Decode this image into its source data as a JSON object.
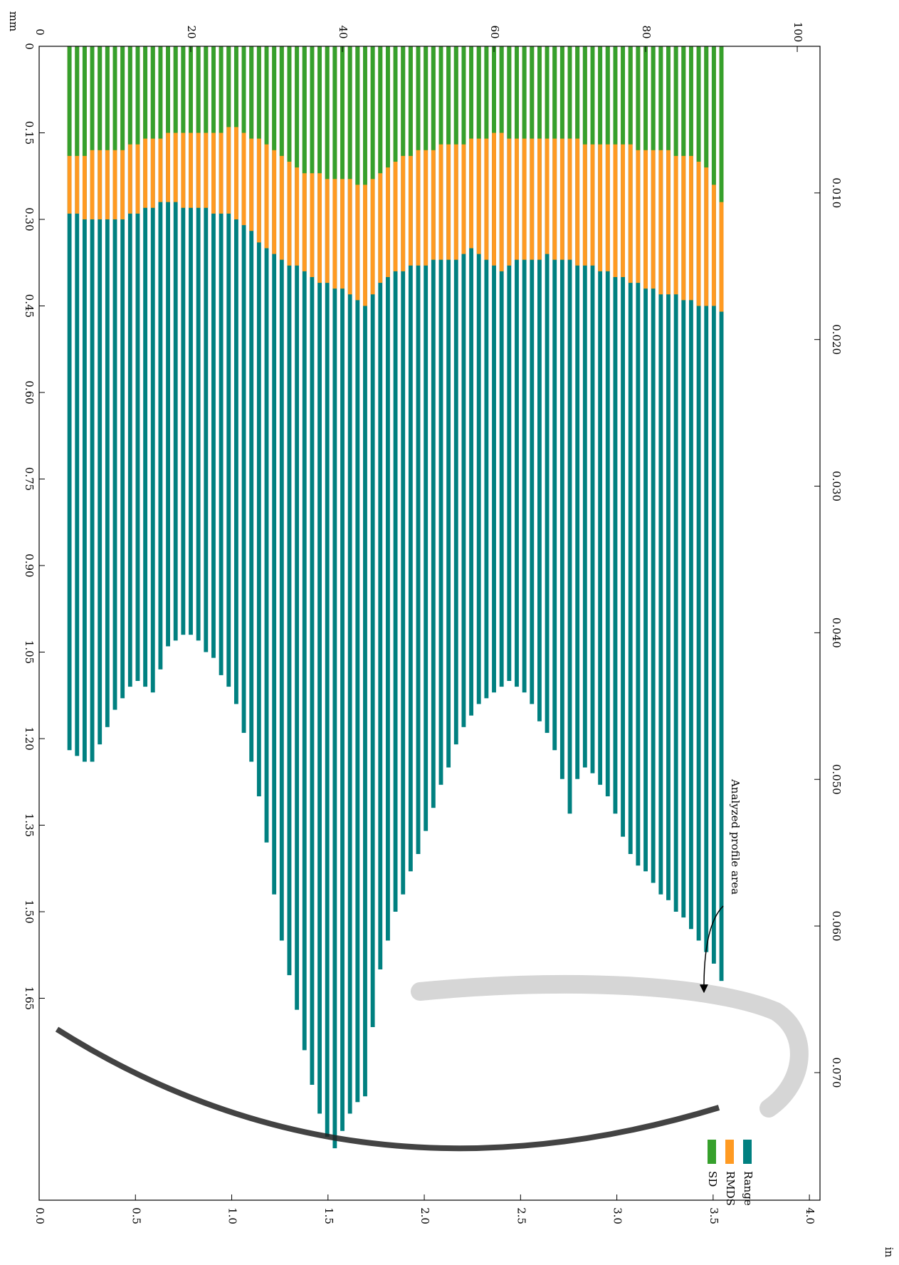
{
  "chart_data": {
    "type": "bar",
    "ylabel": "mm",
    "x2label": "in",
    "annotation": "Analyzed profile area",
    "legend": "lower right",
    "xlim": [
      0,
      103
    ],
    "xticks": [
      0,
      20,
      40,
      60,
      80,
      100
    ],
    "x2lim": [
      0,
      4.055
    ],
    "x2ticks": [
      {
        "value": 0,
        "label": "0.0"
      },
      0.5,
      {
        "value": 1,
        "label": "1.0"
      },
      1.5,
      {
        "value": 2,
        "label": "2.0"
      },
      2.5,
      {
        "value": 3,
        "label": "3.0"
      },
      3.5,
      {
        "value": 4,
        "label": "4.0"
      }
    ],
    "ylim": [
      0,
      2.0
    ],
    "yticks": [
      0,
      0.15,
      {
        "value": 0.3,
        "label": "0.30"
      },
      0.45,
      {
        "value": 0.6,
        "label": "0.60"
      },
      0.75,
      {
        "value": 0.9,
        "label": "0.90"
      },
      1.05,
      {
        "value": 1.2,
        "label": "1.20"
      },
      1.35,
      {
        "value": 1.5,
        "label": "1.50"
      },
      1.65
    ],
    "y2lim": [
      0,
      0.0787
    ],
    "y2ticks": [
      {
        "value": 0.01,
        "label": "0.010"
      },
      {
        "value": 0.02,
        "label": "0.020"
      },
      {
        "value": 0.03,
        "label": "0.030"
      },
      {
        "value": 0.04,
        "label": "0.040"
      },
      {
        "value": 0.05,
        "label": "0.050"
      },
      {
        "value": 0.06,
        "label": "0.060"
      },
      {
        "value": 0.07,
        "label": "0.070"
      }
    ],
    "x": [
      4,
      5,
      6,
      7,
      8,
      9,
      10,
      11,
      12,
      13,
      14,
      15,
      16,
      17,
      18,
      19,
      20,
      21,
      22,
      23,
      24,
      25,
      26,
      27,
      28,
      29,
      30,
      31,
      32,
      33,
      34,
      35,
      36,
      37,
      38,
      39,
      40,
      41,
      42,
      43,
      44,
      45,
      46,
      47,
      48,
      49,
      50,
      51,
      52,
      53,
      54,
      55,
      56,
      57,
      58,
      59,
      60,
      61,
      62,
      63,
      64,
      65,
      66,
      67,
      68,
      69,
      70,
      71,
      72,
      73,
      74,
      75,
      76,
      77,
      78,
      79,
      80,
      81,
      82,
      83,
      84,
      85,
      86,
      87,
      88,
      89,
      90
    ],
    "series": [
      {
        "name": "Range",
        "color": "#008080",
        "values": [
          1.22,
          1.23,
          1.24,
          1.24,
          1.21,
          1.18,
          1.15,
          1.13,
          1.11,
          1.1,
          1.11,
          1.12,
          1.08,
          1.04,
          1.03,
          1.02,
          1.02,
          1.03,
          1.05,
          1.06,
          1.09,
          1.11,
          1.14,
          1.19,
          1.24,
          1.3,
          1.38,
          1.47,
          1.55,
          1.61,
          1.67,
          1.74,
          1.8,
          1.85,
          1.89,
          1.91,
          1.88,
          1.85,
          1.83,
          1.82,
          1.7,
          1.6,
          1.55,
          1.5,
          1.47,
          1.43,
          1.4,
          1.36,
          1.32,
          1.28,
          1.25,
          1.21,
          1.18,
          1.16,
          1.14,
          1.13,
          1.12,
          1.11,
          1.1,
          1.11,
          1.12,
          1.14,
          1.17,
          1.19,
          1.22,
          1.27,
          1.33,
          1.27,
          1.25,
          1.26,
          1.28,
          1.3,
          1.33,
          1.37,
          1.4,
          1.42,
          1.43,
          1.45,
          1.47,
          1.48,
          1.5,
          1.51,
          1.53,
          1.55,
          1.57,
          1.59,
          1.62
        ]
      },
      {
        "name": "RMDS",
        "color": "#ff9a22",
        "values": [
          0.29,
          0.29,
          0.3,
          0.3,
          0.3,
          0.3,
          0.3,
          0.3,
          0.29,
          0.29,
          0.28,
          0.28,
          0.27,
          0.27,
          0.27,
          0.28,
          0.28,
          0.28,
          0.28,
          0.29,
          0.29,
          0.29,
          0.3,
          0.31,
          0.32,
          0.34,
          0.35,
          0.36,
          0.37,
          0.38,
          0.38,
          0.39,
          0.4,
          0.41,
          0.41,
          0.42,
          0.42,
          0.43,
          0.44,
          0.45,
          0.43,
          0.41,
          0.4,
          0.39,
          0.39,
          0.38,
          0.38,
          0.38,
          0.37,
          0.37,
          0.37,
          0.37,
          0.36,
          0.35,
          0.36,
          0.37,
          0.38,
          0.39,
          0.38,
          0.37,
          0.37,
          0.37,
          0.37,
          0.36,
          0.37,
          0.37,
          0.37,
          0.38,
          0.38,
          0.38,
          0.39,
          0.39,
          0.4,
          0.4,
          0.41,
          0.41,
          0.42,
          0.42,
          0.43,
          0.43,
          0.43,
          0.44,
          0.44,
          0.45,
          0.45,
          0.45,
          0.46
        ]
      },
      {
        "name": "SD",
        "color": "#36a02c",
        "values": [
          0.19,
          0.19,
          0.19,
          0.18,
          0.18,
          0.18,
          0.18,
          0.18,
          0.17,
          0.17,
          0.16,
          0.16,
          0.16,
          0.15,
          0.15,
          0.15,
          0.15,
          0.15,
          0.15,
          0.15,
          0.15,
          0.14,
          0.14,
          0.15,
          0.16,
          0.16,
          0.17,
          0.18,
          0.19,
          0.2,
          0.21,
          0.22,
          0.22,
          0.22,
          0.23,
          0.23,
          0.23,
          0.23,
          0.24,
          0.24,
          0.23,
          0.22,
          0.21,
          0.2,
          0.19,
          0.19,
          0.18,
          0.18,
          0.18,
          0.17,
          0.17,
          0.17,
          0.17,
          0.16,
          0.16,
          0.16,
          0.15,
          0.15,
          0.16,
          0.16,
          0.16,
          0.16,
          0.16,
          0.16,
          0.16,
          0.16,
          0.16,
          0.16,
          0.17,
          0.17,
          0.17,
          0.17,
          0.17,
          0.17,
          0.17,
          0.18,
          0.18,
          0.18,
          0.18,
          0.18,
          0.19,
          0.19,
          0.19,
          0.2,
          0.21,
          0.24,
          0.27
        ]
      }
    ]
  }
}
